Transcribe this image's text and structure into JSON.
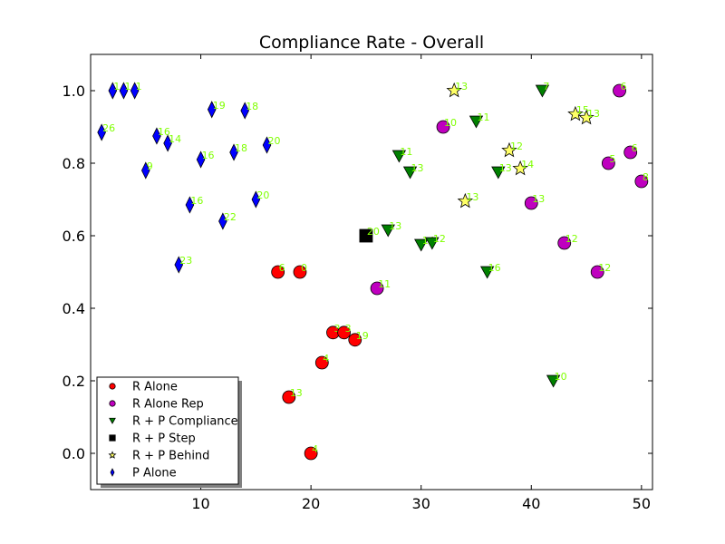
{
  "chart_data": {
    "type": "scatter",
    "title": "Compliance Rate - Overall",
    "xlabel": "",
    "ylabel": "",
    "xlim": [
      0,
      51
    ],
    "ylim": [
      -0.1,
      1.1
    ],
    "xticks": [
      10,
      20,
      30,
      40,
      50
    ],
    "yticks": [
      0.0,
      0.2,
      0.4,
      0.6,
      0.8,
      1.0
    ],
    "xtick_labels": [
      "10",
      "20",
      "30",
      "40",
      "50"
    ],
    "ytick_labels": [
      "0.0",
      "0.2",
      "0.4",
      "0.6",
      "0.8",
      "1.0"
    ],
    "grid": false,
    "legend_position": "lower-left",
    "series": [
      {
        "name": "R Alone",
        "marker": "circle",
        "color": "#ff0000",
        "points": [
          {
            "x": 17,
            "y": 0.5,
            "label": "6"
          },
          {
            "x": 19,
            "y": 0.5,
            "label": "0"
          },
          {
            "x": 18,
            "y": 0.155,
            "label": "13"
          },
          {
            "x": 20,
            "y": 0.0,
            "label": "4"
          },
          {
            "x": 21,
            "y": 0.25,
            "label": "4"
          },
          {
            "x": 22,
            "y": 0.333,
            "label": "3"
          },
          {
            "x": 23,
            "y": 0.333,
            "label": "3"
          },
          {
            "x": 24,
            "y": 0.313,
            "label": "19"
          }
        ]
      },
      {
        "name": "R Alone Rep",
        "marker": "circle",
        "color": "#bf00bf",
        "points": [
          {
            "x": 26,
            "y": 0.455,
            "label": "11"
          },
          {
            "x": 32,
            "y": 0.9,
            "label": "10"
          },
          {
            "x": 40,
            "y": 0.69,
            "label": "13"
          },
          {
            "x": 43,
            "y": 0.58,
            "label": "12"
          },
          {
            "x": 46,
            "y": 0.5,
            "label": "12"
          },
          {
            "x": 47,
            "y": 0.8,
            "label": "5"
          },
          {
            "x": 48,
            "y": 1.0,
            "label": "6"
          },
          {
            "x": 49,
            "y": 0.83,
            "label": "6"
          },
          {
            "x": 50,
            "y": 0.75,
            "label": "8"
          }
        ]
      },
      {
        "name": "R + P Compliance",
        "marker": "triangle-down",
        "color": "#008000",
        "points": [
          {
            "x": 27,
            "y": 0.615,
            "label": "13"
          },
          {
            "x": 28,
            "y": 0.82,
            "label": "11"
          },
          {
            "x": 29,
            "y": 0.775,
            "label": "13"
          },
          {
            "x": 30,
            "y": 0.575,
            "label": "14"
          },
          {
            "x": 31,
            "y": 0.58,
            "label": "12"
          },
          {
            "x": 35,
            "y": 0.915,
            "label": "11"
          },
          {
            "x": 36,
            "y": 0.5,
            "label": "16"
          },
          {
            "x": 37,
            "y": 0.775,
            "label": "13"
          },
          {
            "x": 41,
            "y": 1.0,
            "label": "7"
          },
          {
            "x": 42,
            "y": 0.2,
            "label": "10"
          }
        ]
      },
      {
        "name": "R + P Step",
        "marker": "square",
        "color": "#000000",
        "points": [
          {
            "x": 25,
            "y": 0.6,
            "label": "20"
          }
        ]
      },
      {
        "name": "R + P Behind",
        "marker": "star",
        "color": "#ffff66",
        "points": [
          {
            "x": 33,
            "y": 1.0,
            "label": "13"
          },
          {
            "x": 34,
            "y": 0.695,
            "label": "13"
          },
          {
            "x": 38,
            "y": 0.835,
            "label": "12"
          },
          {
            "x": 39,
            "y": 0.785,
            "label": "14"
          },
          {
            "x": 44,
            "y": 0.935,
            "label": "15"
          },
          {
            "x": 45,
            "y": 0.925,
            "label": "13"
          }
        ]
      },
      {
        "name": "P Alone",
        "marker": "thin-diamond",
        "color": "#0000ff",
        "points": [
          {
            "x": 1,
            "y": 0.885,
            "label": "26"
          },
          {
            "x": 2,
            "y": 1.0,
            "label": "1"
          },
          {
            "x": 3,
            "y": 1.0,
            "label": "1"
          },
          {
            "x": 4,
            "y": 1.0,
            "label": "1"
          },
          {
            "x": 5,
            "y": 0.78,
            "label": "9"
          },
          {
            "x": 6,
            "y": 0.875,
            "label": "16"
          },
          {
            "x": 7,
            "y": 0.855,
            "label": "14"
          },
          {
            "x": 8,
            "y": 0.52,
            "label": "23"
          },
          {
            "x": 9,
            "y": 0.685,
            "label": "16"
          },
          {
            "x": 10,
            "y": 0.81,
            "label": "16"
          },
          {
            "x": 11,
            "y": 0.948,
            "label": "19"
          },
          {
            "x": 12,
            "y": 0.64,
            "label": "22"
          },
          {
            "x": 13,
            "y": 0.83,
            "label": "18"
          },
          {
            "x": 14,
            "y": 0.945,
            "label": "18"
          },
          {
            "x": 15,
            "y": 0.7,
            "label": "20"
          },
          {
            "x": 16,
            "y": 0.85,
            "label": "20"
          }
        ]
      }
    ]
  }
}
